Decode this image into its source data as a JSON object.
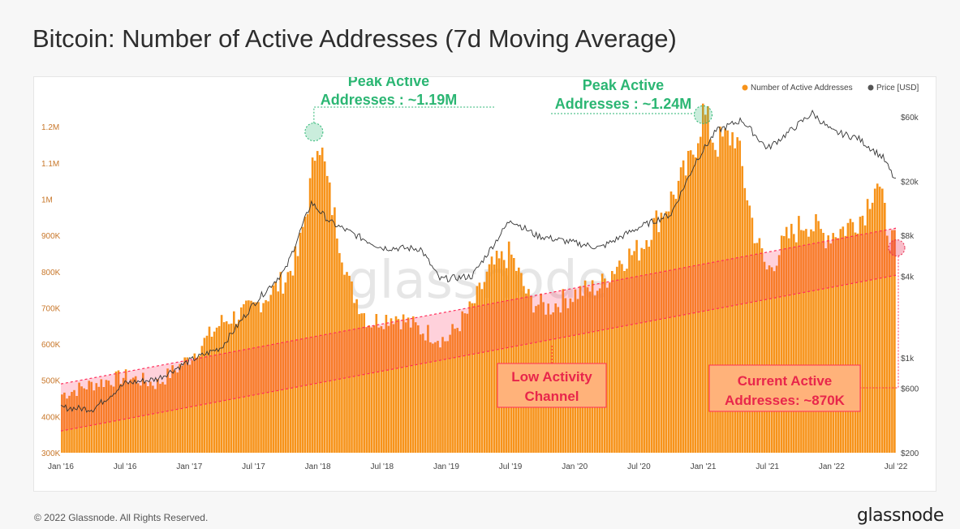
{
  "title": "Bitcoin: Number of Active Addresses (7d Moving Average)",
  "footer": {
    "copyright": "© 2022 Glassnode. All Rights Reserved.",
    "logo": "glassnode"
  },
  "watermark": "glassnode",
  "colors": {
    "bars": "#f7931a",
    "channel": "#ff2d5a",
    "channel_fill": "#ffb6c6",
    "price": "#333333",
    "annotation_green": "#2bb673",
    "annotation_red": "#e8264b"
  },
  "chart_data": {
    "type": "bar",
    "title": "Bitcoin: Number of Active Addresses (7d Moving Average)",
    "legend": {
      "placement": "top-right",
      "entries": [
        {
          "name": "Number of Active Addresses",
          "color": "#f7931a"
        },
        {
          "name": "Price [USD]",
          "color": "#555555"
        }
      ]
    },
    "x_ticks": [
      "Jan '16",
      "Jul '16",
      "Jan '17",
      "Jul '17",
      "Jan '18",
      "Jul '18",
      "Jan '19",
      "Jul '19",
      "Jan '20",
      "Jul '20",
      "Jan '21",
      "Jul '21",
      "Jan '22",
      "Jul '22"
    ],
    "y_left": {
      "ticks": [
        "300K",
        "400K",
        "500K",
        "600K",
        "700K",
        "800K",
        "900K",
        "1M",
        "1.1M",
        "1.2M"
      ],
      "tick_values": [
        300000,
        400000,
        500000,
        600000,
        700000,
        800000,
        900000,
        1000000,
        1100000,
        1200000
      ],
      "range": [
        300000,
        1270000
      ]
    },
    "y_right": {
      "scale": "log",
      "ticks": [
        "$200",
        "$600",
        "$1k",
        "$4k",
        "$8k",
        "$20k",
        "$60k"
      ],
      "tick_values": [
        200,
        600,
        1000,
        4000,
        8000,
        20000,
        60000
      ]
    },
    "series": [
      {
        "name": "Number of Active Addresses",
        "type": "area",
        "x": [
          2016.0,
          2016.25,
          2016.5,
          2016.75,
          2017.0,
          2017.25,
          2017.5,
          2017.75,
          2017.85,
          2017.95,
          2018.0,
          2018.1,
          2018.25,
          2018.4,
          2018.6,
          2018.8,
          2019.0,
          2019.2,
          2019.35,
          2019.5,
          2019.65,
          2019.8,
          2020.0,
          2020.2,
          2020.35,
          2020.5,
          2020.6,
          2020.75,
          2020.9,
          2021.0,
          2021.1,
          2021.25,
          2021.4,
          2021.5,
          2021.65,
          2021.8,
          2021.95,
          2022.1,
          2022.25,
          2022.35,
          2022.45,
          2022.5
        ],
        "y": [
          460000,
          490000,
          510000,
          490000,
          560000,
          660000,
          700000,
          780000,
          850000,
          1050000,
          1190000,
          1000000,
          760000,
          660000,
          680000,
          640000,
          610000,
          700000,
          810000,
          850000,
          720000,
          700000,
          740000,
          760000,
          830000,
          860000,
          920000,
          1000000,
          1100000,
          1240000,
          1150000,
          1180000,
          910000,
          800000,
          890000,
          940000,
          900000,
          920000,
          960000,
          1060000,
          900000,
          870000
        ]
      },
      {
        "name": "Price [USD]",
        "type": "line",
        "x": [
          2016.0,
          2016.25,
          2016.5,
          2016.75,
          2017.0,
          2017.25,
          2017.5,
          2017.75,
          2017.95,
          2018.1,
          2018.3,
          2018.5,
          2018.8,
          2018.95,
          2019.2,
          2019.5,
          2019.7,
          2019.95,
          2020.2,
          2020.5,
          2020.75,
          2020.95,
          2021.1,
          2021.3,
          2021.5,
          2021.65,
          2021.85,
          2022.0,
          2022.2,
          2022.4,
          2022.5
        ],
        "y": [
          430,
          420,
          650,
          700,
          950,
          1200,
          2500,
          4500,
          14000,
          10000,
          8000,
          6500,
          6400,
          3800,
          4000,
          10500,
          8000,
          7200,
          6500,
          9200,
          11500,
          29000,
          47000,
          57000,
          35000,
          45000,
          64000,
          47000,
          42000,
          30000,
          20000
        ]
      }
    ],
    "annotations": [
      {
        "text_lines": [
          "Peak Active",
          "Addresses : ~1.19M"
        ],
        "value": 1190000,
        "date": "Jan '18"
      },
      {
        "text_lines": [
          "Peak Active",
          "Addresses : ~1.24M"
        ],
        "value": 1240000,
        "date": "Jan '21"
      },
      {
        "text_lines": [
          "Low Activity",
          "Channel"
        ]
      },
      {
        "text_lines": [
          "Current Active",
          "Addresses: ~870K"
        ],
        "value": 870000,
        "date": "Jul '22"
      }
    ],
    "channel": {
      "lower_start": 360000,
      "lower_end": 790000,
      "upper_start": 490000,
      "upper_end": 920000,
      "x_start": 2016.0,
      "x_end": 2022.5
    }
  }
}
